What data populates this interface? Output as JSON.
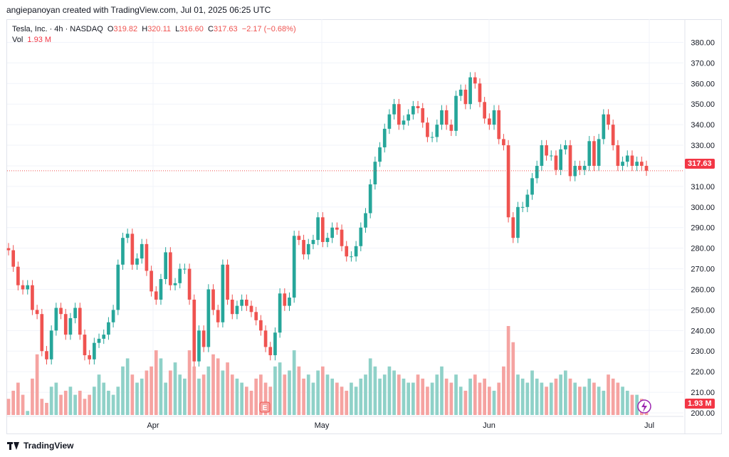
{
  "header": {
    "text": "angiepanoyan created with TradingView.com, Jul 01, 2025 06:25 UTC"
  },
  "legend": {
    "symbol": "Tesla, Inc. · 4h · NASDAQ",
    "open_label": "O",
    "open": "319.82",
    "high_label": "H",
    "high": "320.11",
    "low_label": "L",
    "low": "316.60",
    "close_label": "C",
    "close": "317.63",
    "change": "−2.17 (−0.68%)",
    "vol_label": "Vol",
    "vol": "1.93 M"
  },
  "footer": {
    "brand": "TradingView"
  },
  "price_tag": "317.63",
  "volume_tag": "1.93 M",
  "event_marker": "E",
  "colors": {
    "up": "#26a69a",
    "down": "#ef5350",
    "up_vol": "#8fd1c8",
    "down_vol": "#f5a3a1",
    "grid": "#f0f3fa",
    "price_line": "#ef5350"
  },
  "chart_data": {
    "type": "candlestick",
    "ylim": [
      200,
      385
    ],
    "y_ticks": [
      "380.00",
      "370.00",
      "360.00",
      "350.00",
      "340.00",
      "330.00",
      "320.00",
      "310.00",
      "300.00",
      "290.00",
      "280.00",
      "270.00",
      "260.00",
      "250.00",
      "240.00",
      "230.00",
      "220.00",
      "210.00",
      "200.00"
    ],
    "x_ticks": [
      "Apr",
      "May",
      "Jun",
      "Jul"
    ],
    "last_close": 317.63,
    "closes": [
      279,
      271,
      262,
      260,
      262,
      250,
      248,
      230,
      226,
      240,
      251,
      248,
      238,
      246,
      251,
      238,
      228,
      226,
      234,
      236,
      238,
      244,
      250,
      272,
      285,
      287,
      272,
      275,
      282,
      269,
      259,
      255,
      265,
      278,
      262,
      263,
      270,
      270,
      255,
      225,
      240,
      232,
      260,
      250,
      244,
      272,
      255,
      248,
      252,
      255,
      252,
      249,
      245,
      240,
      232,
      228,
      239,
      258,
      252,
      256,
      286,
      284,
      277,
      282,
      284,
      295,
      283,
      285,
      290,
      289,
      281,
      276,
      276,
      281,
      290,
      297,
      311,
      322,
      329,
      338,
      345,
      350,
      340,
      342,
      345,
      349,
      348,
      341,
      334,
      334,
      340,
      347,
      340,
      337,
      354,
      357,
      350,
      363,
      360,
      351,
      343,
      340,
      347,
      333,
      330,
      295,
      285,
      300,
      300,
      306,
      314,
      320,
      330,
      325,
      325,
      318,
      328,
      330,
      315,
      320,
      318,
      320,
      332,
      320,
      333,
      345,
      340,
      330,
      320,
      322,
      325,
      320,
      322,
      320,
      317.63
    ],
    "volumes": [
      4,
      6,
      8,
      5,
      1,
      9,
      15,
      4,
      3,
      7,
      8,
      5,
      6,
      7,
      5,
      6,
      4,
      5,
      7,
      10,
      8,
      6,
      5,
      7,
      12,
      14,
      10,
      8,
      9,
      11,
      12,
      16,
      14,
      8,
      11,
      13,
      10,
      9,
      16,
      12,
      9,
      10,
      12,
      15,
      14,
      11,
      13,
      10,
      9,
      8,
      7,
      6,
      9,
      10,
      8,
      7,
      12,
      13,
      10,
      11,
      16,
      12,
      9,
      10,
      8,
      11,
      12,
      10,
      9,
      8,
      7,
      6,
      8,
      7,
      9,
      10,
      14,
      12,
      9,
      10,
      12,
      11,
      10,
      9,
      8,
      8,
      10,
      9,
      7,
      8,
      10,
      12,
      9,
      8,
      10,
      7,
      6,
      9,
      10,
      8,
      9,
      7,
      6,
      8,
      12,
      22,
      18,
      10,
      9,
      8,
      11,
      9,
      8,
      7,
      8,
      9,
      10,
      11,
      9,
      8,
      7,
      7,
      9,
      8,
      7,
      6,
      10,
      9,
      8,
      7,
      6,
      5,
      5,
      4,
      2
    ]
  }
}
